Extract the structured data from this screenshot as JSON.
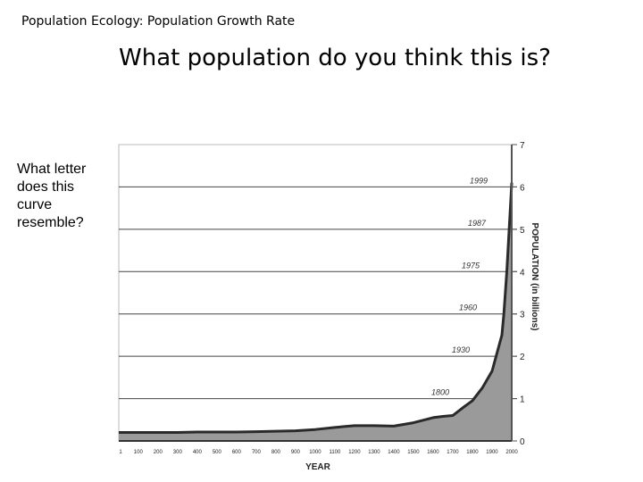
{
  "header": {
    "text": "Population Ecology:  Population Growth Rate"
  },
  "title": {
    "text": "What population do you think this is?"
  },
  "question": {
    "text": "What letter does this curve resemble?"
  },
  "chart_data": {
    "type": "area",
    "xlabel": "YEAR",
    "ylabel": "POPULATION (in billions)",
    "xlim": [
      1,
      2000
    ],
    "ylim": [
      0,
      7
    ],
    "x_ticks": [
      "1",
      "100",
      "200",
      "300",
      "400",
      "500",
      "600",
      "700",
      "800",
      "900",
      "1000",
      "1100",
      "1200",
      "1300",
      "1400",
      "1500",
      "1600",
      "1700",
      "1800",
      "1900",
      "2000"
    ],
    "y_ticks": [
      "0",
      "1",
      "2",
      "3",
      "4",
      "5",
      "6",
      "7"
    ],
    "gridlines": [
      1,
      2,
      3,
      4,
      5,
      6
    ],
    "series": [
      {
        "x": [
          1,
          100,
          200,
          300,
          400,
          500,
          600,
          700,
          800,
          900,
          1000,
          1100,
          1200,
          1300,
          1400,
          1500,
          1600,
          1650,
          1700,
          1750,
          1800,
          1850,
          1900,
          1950,
          1960,
          1975,
          1987,
          1999,
          2000
        ],
        "values": [
          0.2,
          0.2,
          0.2,
          0.2,
          0.21,
          0.21,
          0.21,
          0.22,
          0.23,
          0.24,
          0.27,
          0.32,
          0.36,
          0.36,
          0.35,
          0.43,
          0.55,
          0.58,
          0.6,
          0.78,
          0.95,
          1.25,
          1.65,
          2.5,
          3.0,
          4.0,
          5.0,
          6.0,
          6.1
        ]
      }
    ],
    "annotations": [
      {
        "label": "1800",
        "y": 1
      },
      {
        "label": "1930",
        "y": 2
      },
      {
        "label": "1960",
        "y": 3
      },
      {
        "label": "1975",
        "y": 4
      },
      {
        "label": "1987",
        "y": 5
      },
      {
        "label": "1999",
        "y": 6
      }
    ],
    "colors": {
      "fill": "#9a9a9a",
      "line": "#2a2a2a",
      "grid": "#444444"
    }
  }
}
